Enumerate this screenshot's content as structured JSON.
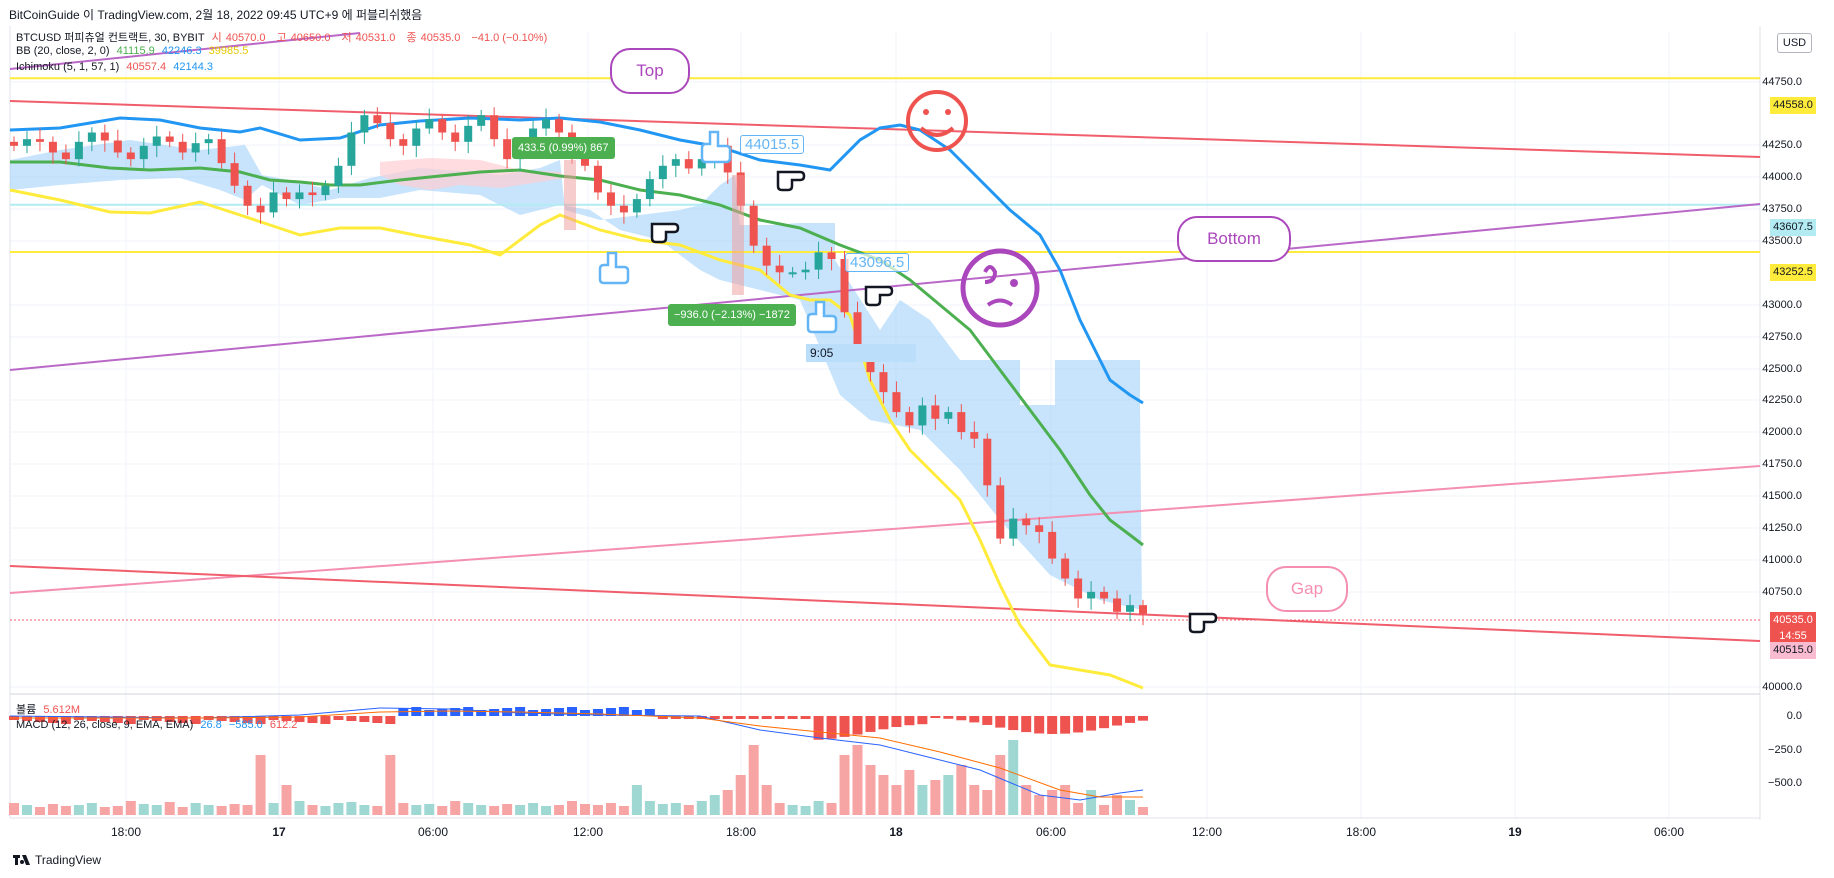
{
  "header": {
    "publisher_line": "BitCoinGuide 이 TradingView.com, 2월 18, 2022 09:45 UTC+9 에 퍼블리쉬했음"
  },
  "legend": {
    "symbol": "BTCUSD 퍼피츄얼 컨트랙트, 30, BYBIT",
    "ohlc": [
      {
        "k": "시",
        "v": "40570.0"
      },
      {
        "k": "고",
        "v": "40650.0"
      },
      {
        "k": "저",
        "v": "40531.0"
      },
      {
        "k": "종",
        "v": "40535.0"
      }
    ],
    "change": "−41.0 (−0.10%)",
    "bb_label": "BB (20, close, 2, 0)",
    "bb_values": [
      "41115.9",
      "42246.3",
      "39985.5"
    ],
    "ichimoku_label": "Ichimoku (5, 1, 57, 1)",
    "ichimoku_values": [
      "40557.4",
      "42144.3"
    ],
    "volume_label": "볼륨",
    "volume_value": "5.612M",
    "macd_label": "MACD (12, 26, close, 9, EMA, EMA)",
    "macd_values": [
      "26.8",
      "−585.0",
      "612.2"
    ]
  },
  "currency_button": "USD",
  "price_axis": [
    "44750.0",
    "44250.0",
    "44000.0",
    "43750.0",
    "43500.0",
    "43000.0",
    "42750.0",
    "42500.0",
    "42250.0",
    "42000.0",
    "41750.0",
    "41500.0",
    "41250.0",
    "41000.0",
    "40750.0",
    "40000.0"
  ],
  "macd_axis": [
    "0.0",
    "−250.0",
    "−500.0"
  ],
  "time_axis": [
    "18:00",
    "17",
    "06:00",
    "12:00",
    "18:00",
    "18",
    "06:00",
    "12:00",
    "18:00",
    "19",
    "06:00"
  ],
  "price_tags": {
    "resistance_top": "44558.0",
    "cyan_level": "43607.5",
    "support_mid": "43252.5",
    "last_price": "40535.0",
    "countdown": "14:55",
    "low_tag": "40515.0"
  },
  "annotations": {
    "top_bubble": "Top",
    "bottom_bubble": "Bottom",
    "gap_bubble": "Gap",
    "measure_up": "433.5 (0.99%) 867",
    "measure_down": "−936.0 (−2.13%) −1872",
    "price_label_high": "44015.5",
    "price_label_mid": "43096.5",
    "time_marker": "9:05"
  },
  "footer": {
    "brand": "TradingView"
  },
  "colors": {
    "up": "#26a69a",
    "down": "#ef5350",
    "bb_upper": "#2196f3",
    "bb_basis": "#4caf50",
    "bb_lower": "#ffeb3b",
    "cloud": "#90caf9",
    "trend_red": "#f05d6b",
    "trend_pink": "#f48fb1",
    "trend_purple": "#ba68c8",
    "level_yellow": "#ffeb3b",
    "level_cyan": "#b2ebf2"
  },
  "chart_data": {
    "type": "candlestick",
    "title": "BTCUSD 퍼피츄얼 컨트랙트, 30, BYBIT",
    "y_range": [
      39850,
      44950
    ],
    "x_tick_labels": [
      "18:00",
      "17",
      "06:00",
      "12:00",
      "18:00",
      "18",
      "06:00",
      "12:00",
      "18:00",
      "19",
      "06:00"
    ],
    "horizontal_levels": [
      44558.0,
      43607.5,
      43252.5
    ],
    "last_price": 40535.0,
    "candle_closes": [
      44050,
      44100,
      44080,
      44000,
      43950,
      44080,
      44150,
      44090,
      44000,
      43950,
      44050,
      44120,
      44080,
      44000,
      44070,
      44100,
      43920,
      43750,
      43600,
      43550,
      43700,
      43650,
      43700,
      43680,
      43750,
      43900,
      44150,
      44280,
      44220,
      44100,
      44050,
      44180,
      44250,
      44150,
      44080,
      44200,
      44280,
      44100,
      43950,
      44050,
      44180,
      44250,
      44150,
      44000,
      43900,
      43700,
      43600,
      43550,
      43650,
      43800,
      43900,
      43950,
      43880,
      43950,
      44050,
      43850,
      43600,
      43300,
      43150,
      43100,
      43100,
      43120,
      43250,
      43200,
      42800,
      42500,
      42350,
      42200,
      42050,
      41950,
      42100,
      42000,
      42050,
      41900,
      41850,
      41500,
      41100,
      41250,
      41200,
      41150,
      40950,
      40800,
      40650,
      40700,
      40650,
      40550,
      40600,
      40535
    ]
  }
}
